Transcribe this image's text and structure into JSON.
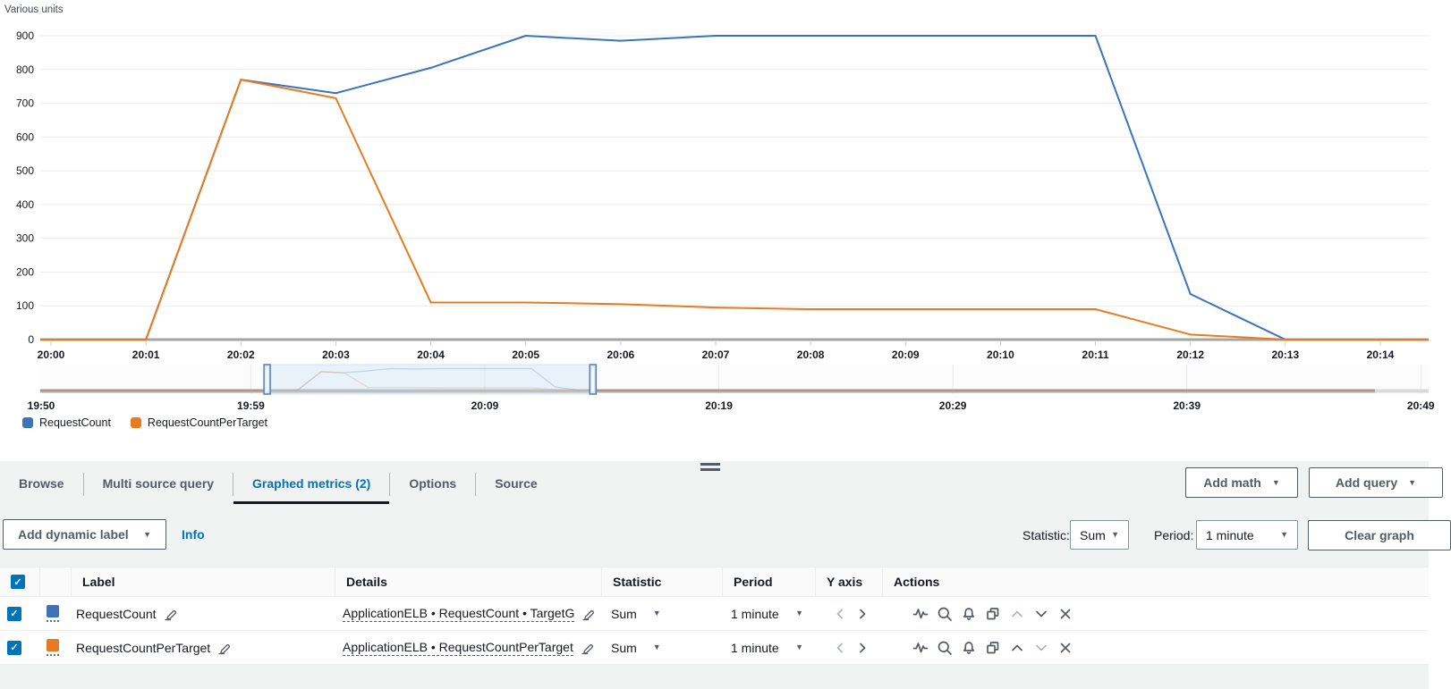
{
  "colors": {
    "accent": "#0073bb",
    "tab_underline": "#16191f",
    "button": "#545b64",
    "axis": "#a5a5a5"
  },
  "chart_data": {
    "type": "line",
    "title": "Various units",
    "x": [
      "20:00",
      "20:01",
      "20:02",
      "20:03",
      "20:04",
      "20:05",
      "20:06",
      "20:07",
      "20:08",
      "20:09",
      "20:10",
      "20:11",
      "20:12",
      "20:13",
      "20:14"
    ],
    "series": [
      {
        "name": "RequestCount",
        "color": "#3c74b9",
        "values": [
          0,
          0,
          770,
          730,
          805,
          900,
          885,
          900,
          900,
          900,
          900,
          900,
          135,
          0,
          0
        ]
      },
      {
        "name": "RequestCountPerTarget",
        "color": "#e87b22",
        "values": [
          0,
          0,
          770,
          715,
          110,
          110,
          105,
          95,
          90,
          90,
          90,
          90,
          15,
          0,
          0
        ]
      }
    ],
    "ylim": [
      0,
      900
    ],
    "yticks": [
      0,
      100,
      200,
      300,
      400,
      500,
      600,
      700,
      800,
      900
    ],
    "grid": true,
    "legend_position": "bottom-left",
    "timeline": {
      "labels": [
        "19:50",
        "19:59",
        "20:09",
        "20:19",
        "20:29",
        "20:39",
        "20:49"
      ],
      "selection": {
        "start": "20:00",
        "end": "20:14"
      }
    }
  },
  "tabs": [
    "Browse",
    "Multi source query",
    "Graphed metrics (2)",
    "Options",
    "Source"
  ],
  "buttons": {
    "add_math": "Add math",
    "add_query": "Add query",
    "add_dynamic_label": "Add dynamic label",
    "info": "Info",
    "clear_graph": "Clear graph"
  },
  "toolbar": {
    "statistic_label": "Statistic:",
    "statistic_value": "Sum",
    "period_label": "Period:",
    "period_value": "1 minute"
  },
  "table": {
    "headers": [
      "Label",
      "Details",
      "Statistic",
      "Period",
      "Y axis",
      "Actions"
    ],
    "rows": [
      {
        "checked": true,
        "color": "#3c74b9",
        "label": "RequestCount",
        "details": "ApplicationELB • RequestCount • TargetG",
        "statistic": "Sum",
        "period": "1 minute"
      },
      {
        "checked": true,
        "color": "#e87b22",
        "label": "RequestCountPerTarget",
        "details": "ApplicationELB • RequestCountPerTarget",
        "statistic": "Sum",
        "period": "1 minute"
      }
    ]
  }
}
